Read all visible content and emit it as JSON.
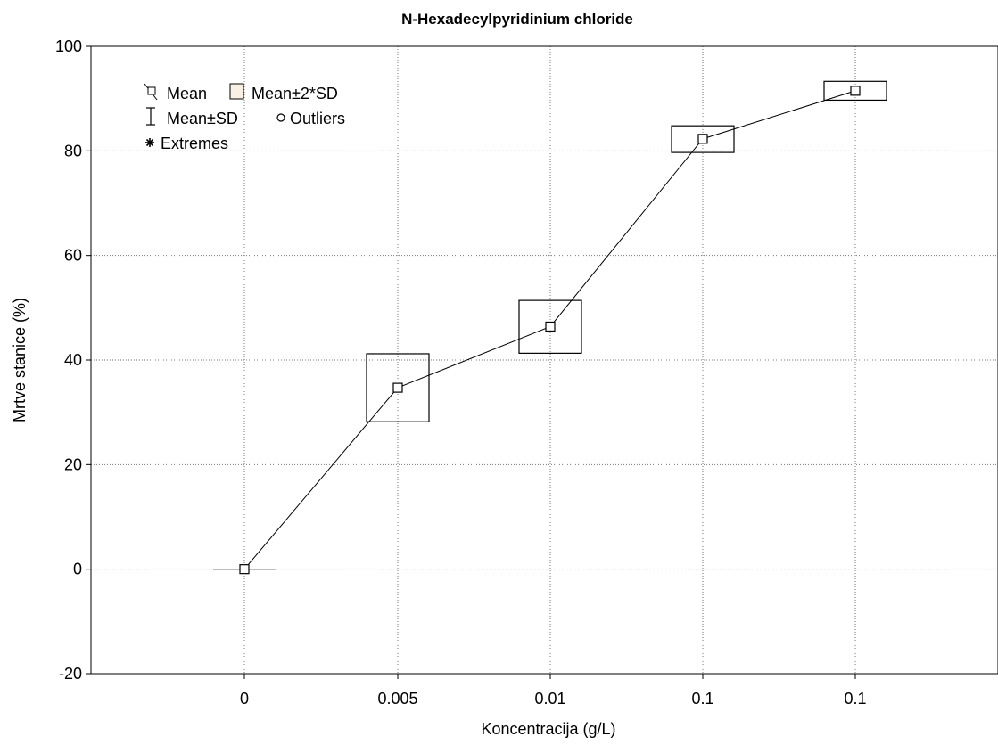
{
  "chart_data": {
    "type": "box",
    "title": "N-Hexadecylpyridinium chloride",
    "xlabel": "Koncentracija (g/L)",
    "ylabel": "Mrtve stanice (%)",
    "categories": [
      "0",
      "0.005",
      "0.01",
      "0.1",
      "0.1"
    ],
    "ylim": [
      -20,
      100
    ],
    "yticks": [
      -20,
      0,
      20,
      40,
      60,
      80,
      100
    ],
    "grid": true,
    "legend_position": "top-left",
    "series": [
      {
        "mean": [
          0,
          34.7,
          46.4,
          82.3,
          91.5
        ],
        "mean_plus_2sd": [
          0,
          41.2,
          51.4,
          84.8,
          93.3
        ],
        "mean_minus_2sd": [
          0,
          28.2,
          41.3,
          79.7,
          89.7
        ]
      }
    ],
    "legend": {
      "mean": "Mean",
      "box": "Mean±2*SD",
      "whisker": "Mean±SD",
      "outliers": "Outliers",
      "extremes": "Extremes"
    }
  }
}
